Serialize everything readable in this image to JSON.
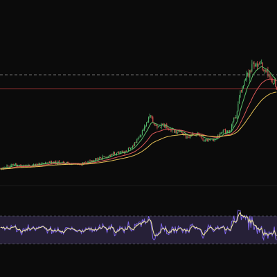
{
  "chart_data": [
    {
      "type": "candlestick",
      "title": "",
      "xlabel": "",
      "ylabel": "",
      "grid": false,
      "legend": "none",
      "x_count": 260,
      "ylim": [
        0,
        100
      ],
      "price_anchors": [
        [
          0,
          6.0
        ],
        [
          12,
          8.0
        ],
        [
          24,
          7.0
        ],
        [
          36,
          8.5
        ],
        [
          48,
          9.5
        ],
        [
          60,
          9.0
        ],
        [
          72,
          8.5
        ],
        [
          84,
          10.0
        ],
        [
          96,
          12.0
        ],
        [
          108,
          14.5
        ],
        [
          118,
          16.0
        ],
        [
          124,
          19.0
        ],
        [
          130,
          24.0
        ],
        [
          136,
          31.0
        ],
        [
          140,
          36.0
        ],
        [
          146,
          30.0
        ],
        [
          152,
          31.0
        ],
        [
          160,
          28.5
        ],
        [
          168,
          27.0
        ],
        [
          176,
          24.0
        ],
        [
          184,
          26.0
        ],
        [
          192,
          22.0
        ],
        [
          200,
          23.0
        ],
        [
          208,
          27.0
        ],
        [
          214,
          26.0
        ],
        [
          220,
          35.0
        ],
        [
          226,
          52.0
        ],
        [
          232,
          60.0
        ],
        [
          238,
          66.0
        ],
        [
          244,
          67.0
        ],
        [
          250,
          61.0
        ],
        [
          256,
          56.0
        ],
        [
          259,
          52.0
        ]
      ],
      "ma_periods": [
        10,
        30,
        60
      ],
      "overlays": {
        "dashed_level": 60.0,
        "solid_level": 52.0
      },
      "series": [
        {
          "role": "candles",
          "color_up": "#53b86b",
          "color_down": "#d9534f"
        },
        {
          "role": "ma-fast",
          "color": "#5ec26a"
        },
        {
          "role": "ma-mid",
          "color": "#e05a5a"
        },
        {
          "role": "ma-slow",
          "color": "#e8c356"
        }
      ]
    },
    {
      "type": "line",
      "title": "",
      "xlabel": "",
      "ylabel": "",
      "grid": false,
      "legend": "none",
      "ylim": [
        0,
        100
      ],
      "bands": {
        "upper": 70,
        "lower": 30,
        "band_fill": "#2b2440"
      },
      "series": [
        {
          "role": "oscillator-raw",
          "color": "#7d64e6"
        },
        {
          "role": "oscillator-smooth",
          "color": "#e8e0a0"
        }
      ]
    }
  ],
  "colors": {
    "background": "#0b0b0b",
    "dashed_level": "#8a8a8a",
    "solid_level": "#8b2d2d",
    "panel_divider": "#1b1b1b"
  }
}
